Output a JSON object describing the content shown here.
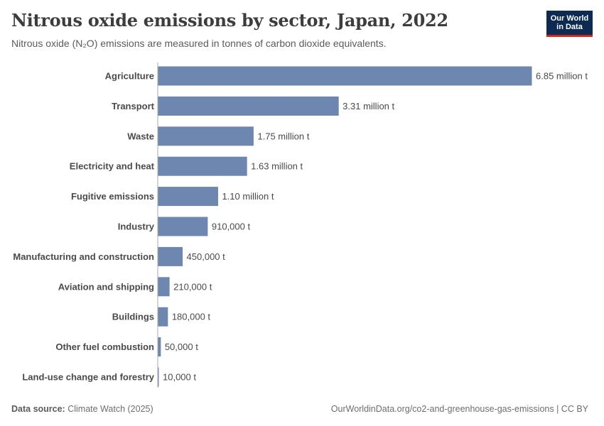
{
  "header": {
    "title": "Nitrous oxide emissions by sector, Japan, 2022",
    "subtitle": "Nitrous oxide (N₂O) emissions are measured in tonnes of carbon dioxide equivalents."
  },
  "logo": {
    "line1": "Our World",
    "line2": "in Data"
  },
  "footer": {
    "source_label": "Data source:",
    "source_value": "Climate Watch (2025)",
    "url": "OurWorldinData.org/co2-and-greenhouse-gas-emissions | CC BY"
  },
  "colors": {
    "bar": "#6d87b1",
    "axis": "#a8a8a8",
    "logo_bg": "#0d2b52",
    "logo_accent": "#ce261e"
  },
  "chart_data": {
    "type": "bar",
    "orientation": "horizontal",
    "categories": [
      "Agriculture",
      "Transport",
      "Waste",
      "Electricity and heat",
      "Fugitive emissions",
      "Industry",
      "Manufacturing and construction",
      "Aviation and shipping",
      "Buildings",
      "Other fuel combustion",
      "Land-use change and forestry"
    ],
    "values": [
      6850000,
      3310000,
      1750000,
      1630000,
      1100000,
      910000,
      450000,
      210000,
      180000,
      50000,
      10000
    ],
    "value_labels": [
      "6.85 million t",
      "3.31 million t",
      "1.75 million t",
      "1.63 million t",
      "1.10 million t",
      "910,000 t",
      "450,000 t",
      "210,000 t",
      "180,000 t",
      "50,000 t",
      "10,000 t"
    ],
    "unit": "t"
  }
}
